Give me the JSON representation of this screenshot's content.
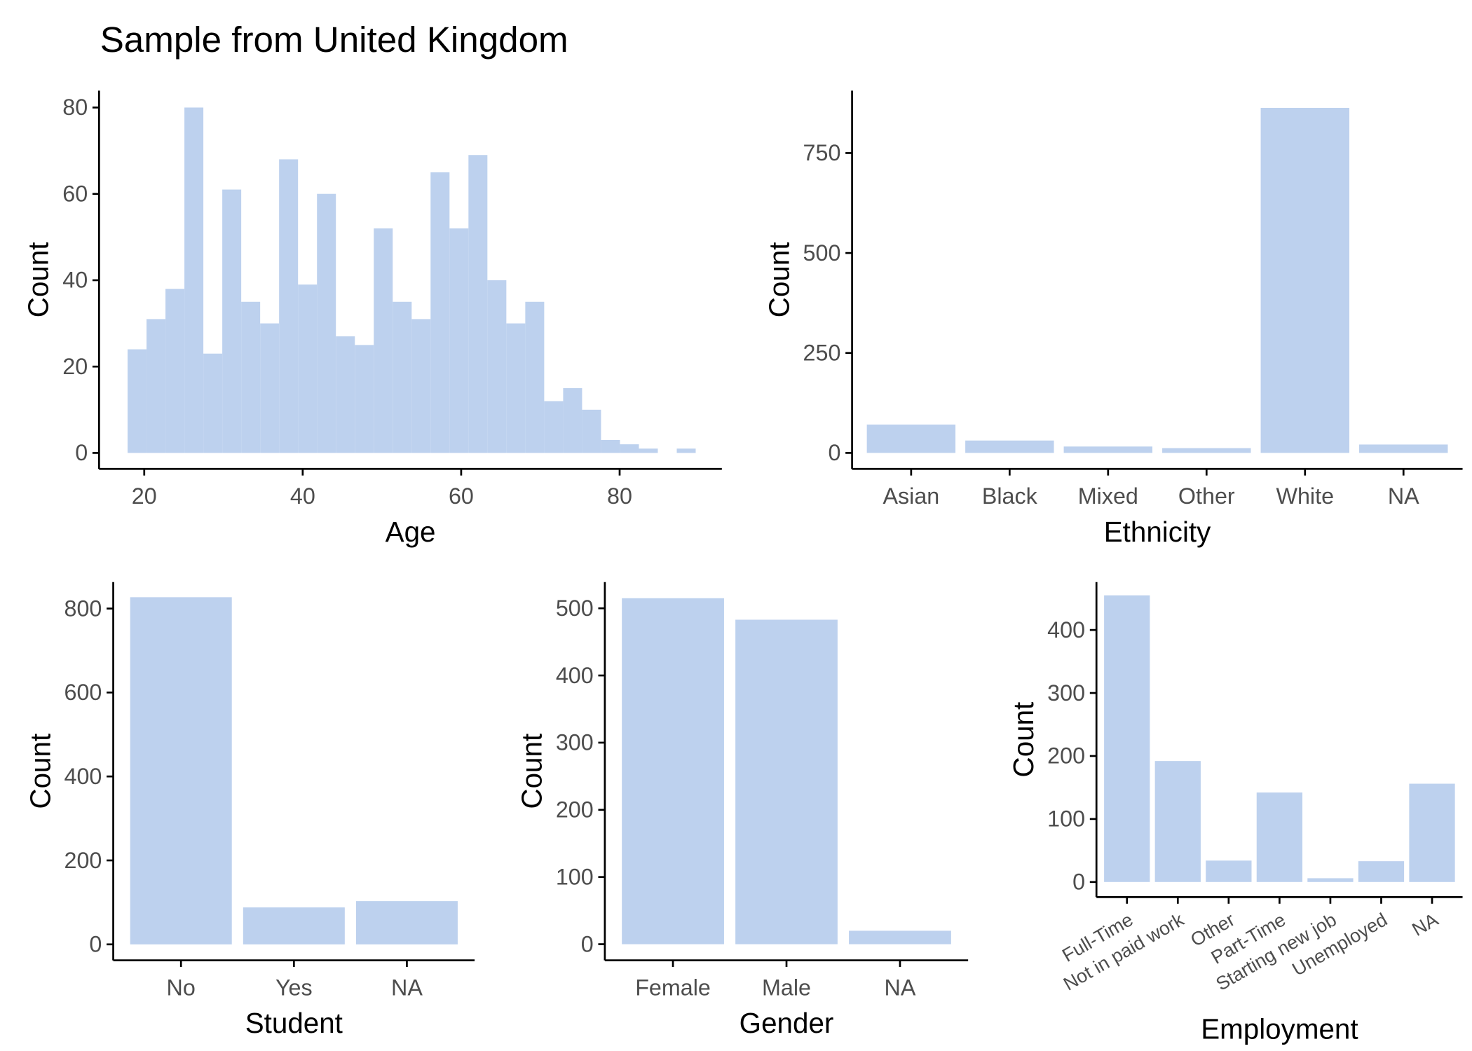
{
  "title": "Sample from United Kingdom",
  "chart_data": [
    {
      "type": "histogram",
      "xlabel": "Age",
      "ylabel": "Count",
      "color": "#bdd1ee",
      "bins": [
        17.9,
        20.29,
        22.68,
        25.07,
        27.46,
        29.85,
        32.24,
        34.63,
        37.02,
        39.41,
        41.8,
        44.19,
        46.58,
        48.97,
        51.36,
        53.75,
        56.14,
        58.53,
        60.92,
        63.31,
        65.7,
        68.09,
        70.48,
        72.87,
        75.26,
        77.65,
        80.04,
        82.43,
        84.82,
        87.21,
        89.6
      ],
      "values": [
        24,
        31,
        38,
        80,
        23,
        61,
        35,
        30,
        68,
        39,
        60,
        27,
        25,
        52,
        35,
        31,
        65,
        52,
        69,
        40,
        30,
        35,
        12,
        15,
        10,
        3,
        2,
        1,
        0,
        1
      ],
      "xlim": [
        14.3,
        92.9
      ],
      "xticks": [
        20,
        40,
        60,
        80
      ],
      "ylim": [
        -3.7,
        83.9
      ],
      "yticks": [
        0,
        20,
        40,
        60,
        80
      ]
    },
    {
      "type": "bar",
      "xlabel": "Ethnicity",
      "ylabel": "Count",
      "color": "#bdd1ee",
      "categories": [
        "Asian",
        "Black",
        "Mixed",
        "Other",
        "White",
        "NA"
      ],
      "values": [
        71,
        31,
        16,
        12,
        863,
        21
      ],
      "ylim": [
        -40,
        906
      ],
      "yticks": [
        0,
        250,
        500,
        750
      ]
    },
    {
      "type": "bar",
      "xlabel": "Student",
      "ylabel": "Count",
      "color": "#bdd1ee",
      "categories": [
        "No",
        "Yes",
        "NA"
      ],
      "values": [
        827,
        88,
        103
      ],
      "ylim": [
        -38,
        863
      ],
      "yticks": [
        0,
        200,
        400,
        600,
        800
      ]
    },
    {
      "type": "bar",
      "xlabel": "Gender",
      "ylabel": "Count",
      "color": "#bdd1ee",
      "categories": [
        "Female",
        "Male",
        "NA"
      ],
      "values": [
        515,
        483,
        20
      ],
      "ylim": [
        -24,
        539
      ],
      "yticks": [
        0,
        100,
        200,
        300,
        400,
        500
      ]
    },
    {
      "type": "bar",
      "xlabel": "Employment",
      "ylabel": "Count",
      "color": "#bdd1ee",
      "rotate_labels": true,
      "categories": [
        "Full-Time",
        "Not in paid work",
        "Other",
        "Part-Time",
        "Starting new job",
        "Unemployed",
        "NA"
      ],
      "values": [
        455,
        192,
        34,
        142,
        6,
        33,
        156
      ],
      "ylim": [
        -24,
        476
      ],
      "yticks": [
        0,
        100,
        200,
        300,
        400
      ]
    }
  ]
}
